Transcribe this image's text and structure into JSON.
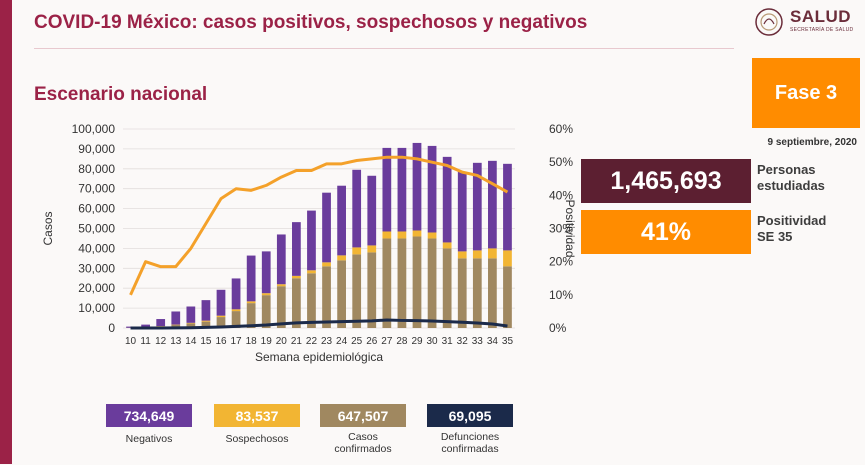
{
  "header": {
    "title": "COVID-19 México: casos positivos, sospechosos y negativos",
    "subtitle": "Escenario nacional",
    "logo_text": "SALUD",
    "logo_subtext": "SECRETARÍA DE SALUD"
  },
  "fase": {
    "label": "Fase 3"
  },
  "fecha": "9 septiembre, 2020",
  "stats": [
    {
      "value": "1,465,693",
      "label_line1": "Personas",
      "label_line2": "estudiadas",
      "color": "#5c1f31"
    },
    {
      "value": "41%",
      "label_line1": "Positividad",
      "label_line2": "SE 35",
      "color": "#ff8c00"
    }
  ],
  "legend": [
    {
      "value": "734,649",
      "label_line1": "Negativos",
      "label_line2": "",
      "color": "#6a3c9c"
    },
    {
      "value": "83,537",
      "label_line1": "Sospechosos",
      "label_line2": "",
      "color": "#f2b533"
    },
    {
      "value": "647,507",
      "label_line1": "Casos",
      "label_line2": "confirmados",
      "color": "#a08860"
    },
    {
      "value": "69,095",
      "label_line1": "Defunciones",
      "label_line2": "confirmadas",
      "color": "#1b2a4a"
    }
  ],
  "colors": {
    "negativos": "#6a3c9c",
    "sospechosos": "#f2b533",
    "confirmados": "#a08860",
    "defunciones": "#1b2a4a",
    "positividad": "#f4a12a",
    "brand": "#9b2247"
  },
  "chart_data": {
    "type": "bar",
    "stacked": true,
    "xlabel": "Semana epidemiológica",
    "ylabel": "Casos",
    "y2label": "Positividad",
    "ylim": [
      0,
      100000
    ],
    "y2lim": [
      0,
      60
    ],
    "yticks": [
      "0",
      "10,000",
      "20,000",
      "30,000",
      "40,000",
      "50,000",
      "60,000",
      "70,000",
      "80,000",
      "90,000",
      "100,000"
    ],
    "y2ticks": [
      "0%",
      "10%",
      "20%",
      "30%",
      "40%",
      "50%",
      "60%"
    ],
    "categories": [
      "10",
      "11",
      "12",
      "13",
      "14",
      "15",
      "16",
      "17",
      "18",
      "19",
      "20",
      "21",
      "22",
      "23",
      "24",
      "25",
      "26",
      "27",
      "28",
      "29",
      "30",
      "31",
      "32",
      "33",
      "34",
      "35"
    ],
    "series": [
      {
        "name": "Casos confirmados",
        "kind": "bar",
        "values": [
          100,
          400,
          900,
          1500,
          2300,
          3200,
          5500,
          8500,
          12500,
          16500,
          21000,
          25000,
          27500,
          31000,
          34000,
          37000,
          38000,
          45000,
          45000,
          46000,
          45000,
          40000,
          35000,
          35000,
          35000,
          31000
        ]
      },
      {
        "name": "Sospechosos",
        "kind": "bar",
        "values": [
          0,
          100,
          100,
          200,
          300,
          500,
          700,
          900,
          900,
          1000,
          1000,
          1200,
          1500,
          2000,
          2500,
          3500,
          3500,
          3500,
          3500,
          3000,
          3000,
          3000,
          3500,
          4000,
          5000,
          8000
        ]
      },
      {
        "name": "Negativos",
        "kind": "bar",
        "values": [
          600,
          1200,
          3500,
          6600,
          8200,
          10300,
          13000,
          15500,
          23000,
          21000,
          25000,
          27000,
          30000,
          35000,
          35000,
          39000,
          35000,
          42000,
          42000,
          44000,
          43500,
          43000,
          40000,
          44000,
          44000,
          43500
        ]
      },
      {
        "name": "Defunciones confirmadas",
        "kind": "line",
        "values": [
          0,
          0,
          0,
          50,
          150,
          300,
          500,
          800,
          1100,
          1500,
          2100,
          2600,
          2800,
          3000,
          3200,
          3400,
          3600,
          4000,
          3800,
          3700,
          3500,
          3200,
          2900,
          2500,
          2000,
          1000
        ]
      },
      {
        "name": "Positividad",
        "kind": "line",
        "axis": "y2",
        "values": [
          10,
          20,
          18.5,
          18.5,
          24,
          31.5,
          39,
          42,
          41.5,
          43,
          45.5,
          47.5,
          47.5,
          49.5,
          49.5,
          50.5,
          51,
          51.5,
          51.5,
          51,
          50,
          49,
          47,
          46,
          43.5,
          41
        ]
      }
    ]
  }
}
